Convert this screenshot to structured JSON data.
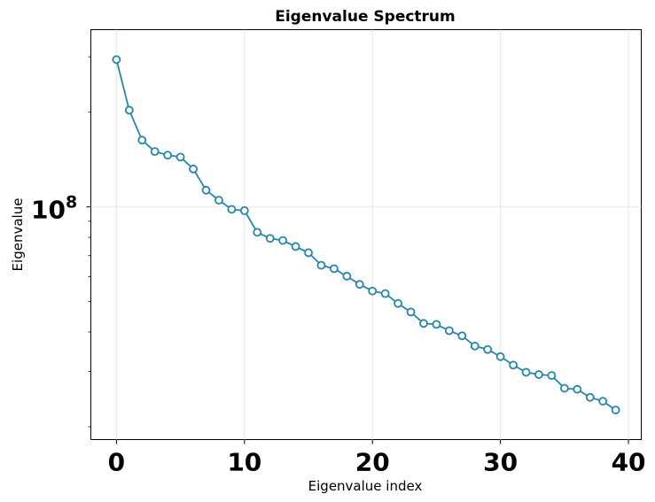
{
  "chart_data": {
    "type": "line",
    "title": "Eigenvalue Spectrum",
    "xlabel": "Eigenvalue index",
    "ylabel": "Eigenvalue",
    "yscale": "log",
    "xlim": [
      -2,
      41
    ],
    "ylim": [
      18200000,
      366000000
    ],
    "grid": true,
    "xticks": [
      0,
      10,
      20,
      30,
      40
    ],
    "yticks": [
      {
        "value": 100000000,
        "base": "10",
        "exponent": "8"
      }
    ],
    "series": [
      {
        "color": "#2586a8",
        "marker": "circle-open",
        "x": [
          0,
          1,
          2,
          3,
          4,
          5,
          6,
          7,
          8,
          9,
          10,
          11,
          12,
          13,
          14,
          15,
          16,
          17,
          18,
          19,
          20,
          21,
          22,
          23,
          24,
          25,
          26,
          27,
          28,
          29,
          30,
          31,
          32,
          33,
          34,
          35,
          36,
          37,
          38,
          39
        ],
        "y": [
          294000000,
          203000000,
          163000000,
          150000000,
          146000000,
          144000000,
          132000000,
          113000000,
          105000000,
          98200000,
          97300000,
          83000000,
          79400000,
          78200000,
          74800000,
          71500000,
          65200000,
          63600000,
          60200000,
          56700000,
          54000000,
          53000000,
          49300000,
          46300000,
          42600000,
          42300000,
          40400000,
          38900000,
          36100000,
          35200000,
          33400000,
          31400000,
          29800000,
          29300000,
          29100000,
          26500000,
          26300000,
          24800000,
          24100000,
          22600000
        ]
      }
    ]
  }
}
